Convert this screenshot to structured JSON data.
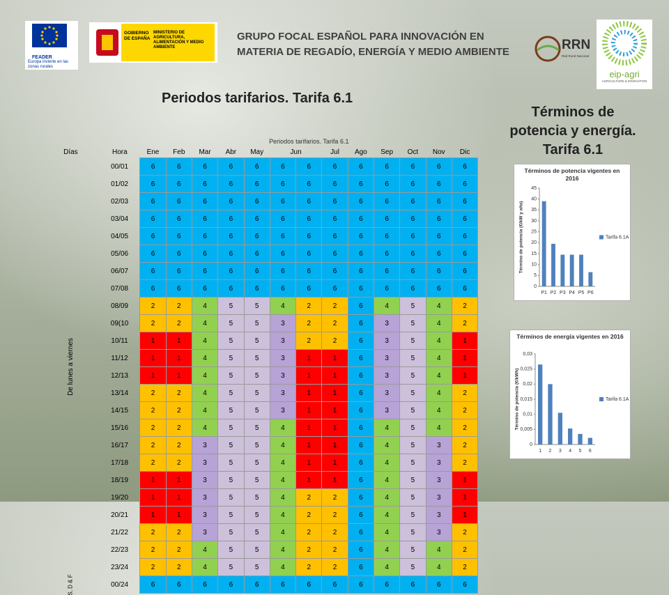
{
  "header": {
    "lines": [
      "GRUPO FOCAL ESPAÑOL PARA INNOVACIÓN EN",
      "MATERIA DE REGADÍO, ENERGÍA Y MEDIO AMBIENTE"
    ],
    "feader": "FEADER",
    "feader_tagline": "Europa invierte en las zonas rurales",
    "gobierno": "GOBIERNO DE ESPAÑA",
    "ministerio": "MINISTERIO DE AGRICULTURA, ALIMENTACIÓN Y MEDIO AMBIENTE",
    "rrn": "RRN",
    "rrn_sub": "Red Rural Nacional",
    "eip": "eip-agri",
    "eip_sub": "AGRICULTURE & INNOVATION"
  },
  "title": "Periodos tarifarios. Tarifa 6.1",
  "side_title": "Términos de potencia y energía. Tarifa 6.1",
  "table": {
    "caption": "Periodos tarifarios. Tarifa 6.1",
    "days_label": "Días",
    "hour_label": "Hora",
    "months": [
      "Ene",
      "Feb",
      "Mar",
      "Abr",
      "May",
      "Jun",
      "Jul",
      "Ago",
      "Sep",
      "Oct",
      "Nov",
      "Dic"
    ],
    "weekday_label": "De lunes a viernes",
    "weekend_label": "S, D & F",
    "hours": [
      "00/01",
      "01/02",
      "02/03",
      "03/04",
      "04/05",
      "05/06",
      "06/07",
      "07/08",
      "08/09",
      "09(10",
      "10/11",
      "11/12",
      "12/13",
      "13/14",
      "14/15",
      "15/16",
      "16/17",
      "17/18",
      "18/19",
      "19/20",
      "20/21",
      "21/22",
      "22/23",
      "23/24",
      "00/24"
    ],
    "rows": [
      [
        6,
        6,
        6,
        6,
        6,
        6,
        6,
        6,
        6,
        6,
        6,
        6,
        6
      ],
      [
        6,
        6,
        6,
        6,
        6,
        6,
        6,
        6,
        6,
        6,
        6,
        6,
        6
      ],
      [
        6,
        6,
        6,
        6,
        6,
        6,
        6,
        6,
        6,
        6,
        6,
        6,
        6
      ],
      [
        6,
        6,
        6,
        6,
        6,
        6,
        6,
        6,
        6,
        6,
        6,
        6,
        6
      ],
      [
        6,
        6,
        6,
        6,
        6,
        6,
        6,
        6,
        6,
        6,
        6,
        6,
        6
      ],
      [
        6,
        6,
        6,
        6,
        6,
        6,
        6,
        6,
        6,
        6,
        6,
        6,
        6
      ],
      [
        6,
        6,
        6,
        6,
        6,
        6,
        6,
        6,
        6,
        6,
        6,
        6,
        6
      ],
      [
        6,
        6,
        6,
        6,
        6,
        6,
        6,
        6,
        6,
        6,
        6,
        6,
        6
      ],
      [
        2,
        2,
        4,
        5,
        5,
        4,
        2,
        2,
        6,
        4,
        5,
        4,
        2
      ],
      [
        2,
        2,
        4,
        5,
        5,
        3,
        2,
        2,
        6,
        3,
        5,
        4,
        2
      ],
      [
        1,
        1,
        4,
        5,
        5,
        3,
        2,
        2,
        6,
        3,
        5,
        4,
        1
      ],
      [
        1,
        1,
        4,
        5,
        5,
        3,
        1,
        1,
        6,
        3,
        5,
        4,
        1
      ],
      [
        1,
        1,
        4,
        5,
        5,
        3,
        1,
        1,
        6,
        3,
        5,
        4,
        1
      ],
      [
        2,
        2,
        4,
        5,
        5,
        3,
        1,
        1,
        6,
        3,
        5,
        4,
        2
      ],
      [
        2,
        2,
        4,
        5,
        5,
        3,
        1,
        1,
        6,
        3,
        5,
        4,
        2
      ],
      [
        2,
        2,
        4,
        5,
        5,
        4,
        1,
        1,
        6,
        4,
        5,
        4,
        2
      ],
      [
        2,
        2,
        3,
        5,
        5,
        4,
        1,
        1,
        6,
        4,
        5,
        3,
        2
      ],
      [
        2,
        2,
        3,
        5,
        5,
        4,
        1,
        1,
        6,
        4,
        5,
        3,
        2
      ],
      [
        1,
        1,
        3,
        5,
        5,
        4,
        1,
        1,
        6,
        4,
        5,
        3,
        1
      ],
      [
        1,
        1,
        3,
        5,
        5,
        4,
        2,
        2,
        6,
        4,
        5,
        3,
        1
      ],
      [
        1,
        1,
        3,
        5,
        5,
        4,
        2,
        2,
        6,
        4,
        5,
        3,
        1
      ],
      [
        2,
        2,
        3,
        5,
        5,
        4,
        2,
        2,
        6,
        4,
        5,
        3,
        2
      ],
      [
        2,
        2,
        4,
        5,
        5,
        4,
        2,
        2,
        6,
        4,
        5,
        4,
        2
      ],
      [
        2,
        2,
        4,
        5,
        5,
        4,
        2,
        2,
        6,
        4,
        5,
        4,
        2
      ],
      [
        6,
        6,
        6,
        6,
        6,
        6,
        6,
        6,
        6,
        6,
        6,
        6,
        6
      ]
    ],
    "colors": {
      "1": "#ff0000",
      "2": "#ffc000",
      "3": "#b7a3d6",
      "4": "#92d050",
      "5": "#ccc0da",
      "6": "#00b0f0"
    }
  },
  "chart_data": [
    {
      "type": "bar",
      "title": "Términos de potencia vigentes en 2016",
      "y_label": "Término de potencia (€/kW y año)",
      "categories": [
        "P1",
        "P2",
        "P3",
        "P4",
        "P5",
        "P6"
      ],
      "series": [
        {
          "name": "Tarifa 6.1A",
          "color": "#4f81bd",
          "values": [
            39,
            19.5,
            14.5,
            14.5,
            14.5,
            6.5
          ]
        }
      ],
      "ylim": [
        0,
        45
      ],
      "yticks": [
        0,
        5,
        10,
        15,
        20,
        25,
        30,
        35,
        40,
        45
      ],
      "legend": "right"
    },
    {
      "type": "bar",
      "title": "Términos de energía vigentes en 2016",
      "y_label": "Término de potencia (€/kWh)",
      "categories": [
        "1",
        "2",
        "3",
        "4",
        "5",
        "6"
      ],
      "series": [
        {
          "name": "Tarifa 6.1A",
          "color": "#4f81bd",
          "values": [
            0.0265,
            0.02,
            0.0105,
            0.0053,
            0.0035,
            0.0022
          ]
        }
      ],
      "ylim": [
        0,
        0.03
      ],
      "yticks": [
        0,
        {
          "value": 0.005,
          "label": "0,005"
        },
        {
          "value": 0.01,
          "label": "0,01"
        },
        {
          "value": 0.015,
          "label": "0,015"
        },
        {
          "value": 0.02,
          "label": "0,02"
        },
        {
          "value": 0.025,
          "label": "0,025"
        },
        {
          "value": 0.03,
          "label": "0,03"
        }
      ],
      "legend": "right"
    }
  ]
}
